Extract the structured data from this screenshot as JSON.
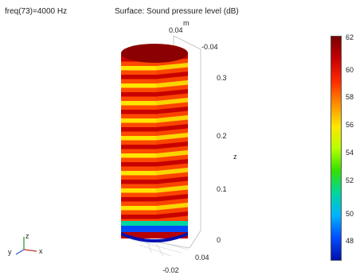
{
  "header": {
    "frequency_label": "freq(73)=4000 Hz",
    "plot_title": "Surface: Sound pressure level (dB)"
  },
  "axes": {
    "x_top_tick": "0.04",
    "y_top_tick": "-0.04",
    "x_bottom_tick": "-0.02",
    "y_bottom_tick": "0.04",
    "z_axis_label": "z",
    "z_ticks": [
      "0.3",
      "0.2",
      "0.1",
      "0"
    ],
    "m_unit": "m"
  },
  "colorbar": {
    "ticks": [
      "62",
      "60",
      "58",
      "56",
      "54",
      "52",
      "50",
      "48"
    ],
    "colors": [
      "#7a0000",
      "#c80000",
      "#ff2a00",
      "#ff8c00",
      "#ffe600",
      "#b8ff00",
      "#34e000",
      "#00d6a0",
      "#00b4ff",
      "#004dff",
      "#0010b0"
    ]
  },
  "triad": {
    "x": "x",
    "y": "y",
    "z": "z"
  }
}
